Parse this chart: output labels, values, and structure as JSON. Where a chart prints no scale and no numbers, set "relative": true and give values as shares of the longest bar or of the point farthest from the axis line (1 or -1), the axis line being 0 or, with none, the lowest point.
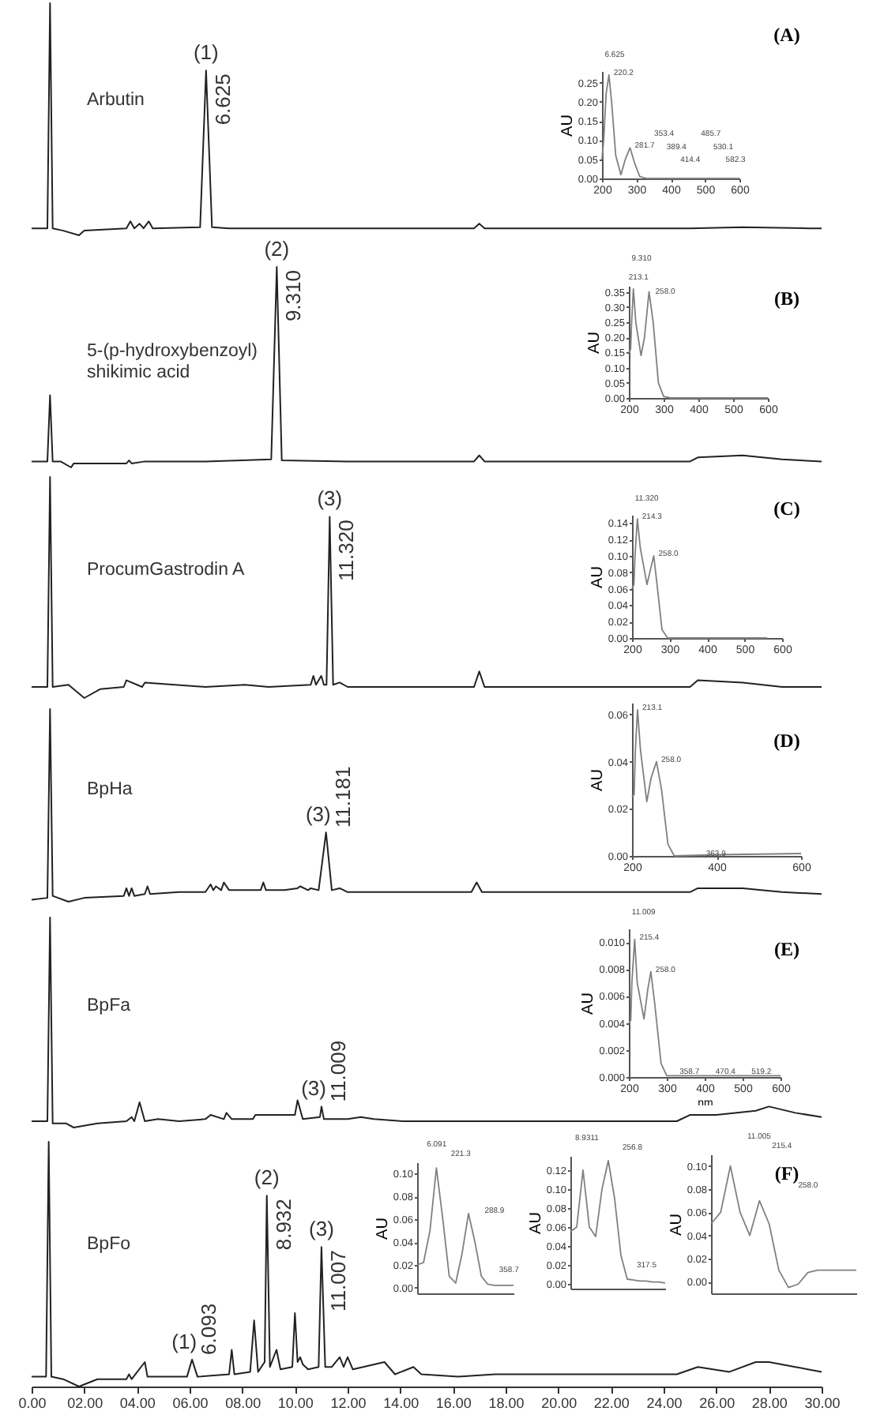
{
  "chart_data": [
    {
      "type": "line",
      "relative": true,
      "color": "#222222",
      "xlim": [
        0,
        30
      ],
      "tick_labels": false,
      "x": [
        0,
        0.6,
        0.7,
        0.8,
        1.2,
        1.8,
        2.0,
        3.6,
        3.75,
        3.9,
        4.1,
        4.25,
        4.45,
        4.6,
        6.4,
        6.625,
        6.85,
        7.5,
        12.5,
        16.8,
        17.0,
        17.2,
        25,
        27,
        29.5,
        30
      ],
      "values": [
        0.03,
        0.03,
        1,
        0.03,
        0.02,
        0,
        0.02,
        0.03,
        0.06,
        0.03,
        0.05,
        0.03,
        0.06,
        0.03,
        0.035,
        0.71,
        0.035,
        0.03,
        0.03,
        0.03,
        0.05,
        0.03,
        0.03,
        0.035,
        0.03,
        0.03
      ],
      "annotations": [
        "Arbutin",
        "(A)",
        {
          "text": "(1)",
          "x": 6.625,
          "y": 0.71
        },
        {
          "text": "6.625",
          "x": 6.625,
          "y": 0.71
        }
      ]
    },
    {
      "type": "line",
      "color": "#808080",
      "xlim": [
        200,
        600
      ],
      "xticks": [
        200,
        300,
        400,
        500,
        600
      ],
      "ylim": [
        0,
        0.28
      ],
      "ylabel": "AU",
      "yticks": [
        {
          "value": 0,
          "label": "0.00"
        },
        {
          "value": 0.05,
          "label": "0.05"
        },
        {
          "value": 0.1,
          "label": "0.10"
        },
        {
          "value": 0.15,
          "label": "0.15"
        },
        {
          "value": 0.2,
          "label": "0.20"
        },
        {
          "value": 0.25,
          "label": "0.25"
        }
      ],
      "x": [
        200,
        205,
        212,
        220.2,
        228,
        240,
        255,
        268,
        281.7,
        295,
        310,
        330,
        400,
        500,
        600
      ],
      "values": [
        0.05,
        0.1,
        0.22,
        0.27,
        0.2,
        0.06,
        0.01,
        0.05,
        0.08,
        0.04,
        0.005,
        0,
        0,
        0,
        0
      ],
      "annotations": [
        "6.625",
        {
          "text": "220.2",
          "x": 220.2,
          "y": 0.27
        },
        {
          "text": "281.7",
          "x": 281.7,
          "y": 0.08
        },
        "353.4",
        "389.4",
        "414.4",
        "485.7",
        "530.1",
        "582.3"
      ]
    },
    {
      "type": "line",
      "relative": true,
      "color": "#222222",
      "xlim": [
        0,
        30
      ],
      "tick_labels": false,
      "x": [
        0,
        0.6,
        0.7,
        0.8,
        1.1,
        1.5,
        1.6,
        3.6,
        3.7,
        3.8,
        4.3,
        6.6,
        8,
        9.1,
        9.31,
        9.5,
        12,
        16.8,
        17,
        17.2,
        25,
        25.3,
        27,
        28.5,
        30
      ],
      "values": [
        0.03,
        0.03,
        0.36,
        0.03,
        0.03,
        0,
        0.02,
        0.02,
        0.035,
        0.02,
        0.03,
        0.03,
        0.035,
        0.04,
        1,
        0.035,
        0.03,
        0.03,
        0.06,
        0.03,
        0.03,
        0.05,
        0.06,
        0.04,
        0.03
      ],
      "annotations": [
        "5-(p-hydroxybenzoyl)\nshikimic acid",
        "(B)",
        {
          "text": "(2)",
          "x": 9.31,
          "y": 1
        },
        {
          "text": "9.310",
          "x": 9.31,
          "y": 1
        }
      ]
    },
    {
      "type": "line",
      "color": "#808080",
      "xlim": [
        200,
        600
      ],
      "xticks": [
        200,
        300,
        400,
        500,
        600
      ],
      "ylim": [
        0,
        0.37
      ],
      "ylabel": "AU",
      "yticks": [
        {
          "value": 0,
          "label": "0.00"
        },
        {
          "value": 0.05,
          "label": "0.05"
        },
        {
          "value": 0.1,
          "label": "0.10"
        },
        {
          "value": 0.15,
          "label": "0.15"
        },
        {
          "value": 0.2,
          "label": "0.20"
        },
        {
          "value": 0.25,
          "label": "0.25"
        },
        {
          "value": 0.3,
          "label": "0.30"
        },
        {
          "value": 0.35,
          "label": "0.35"
        }
      ],
      "x": [
        200,
        205,
        208,
        213.1,
        220,
        235,
        245,
        258,
        270,
        285,
        300,
        320,
        400,
        600
      ],
      "values": [
        0.15,
        0.16,
        0.25,
        0.36,
        0.25,
        0.14,
        0.2,
        0.35,
        0.25,
        0.05,
        0.005,
        0,
        0,
        0
      ],
      "annotations": [
        "9.310",
        {
          "text": "213.1",
          "x": 213.1,
          "y": 0.36
        },
        {
          "text": "258.0",
          "x": 258,
          "y": 0.35
        }
      ]
    },
    {
      "type": "line",
      "relative": true,
      "color": "#222222",
      "xlim": [
        0,
        30
      ],
      "tick_labels": false,
      "x": [
        0,
        0.6,
        0.7,
        0.8,
        1.4,
        2.0,
        2.6,
        3.5,
        3.6,
        4.2,
        4.3,
        6.6,
        8.1,
        9.0,
        10.6,
        10.7,
        10.8,
        11.0,
        11.1,
        11.2,
        11.32,
        11.45,
        11.7,
        12,
        16.8,
        17,
        17.2,
        25,
        25.3,
        27,
        28.5,
        30
      ],
      "values": [
        0.05,
        0.05,
        1,
        0.05,
        0.06,
        0,
        0.04,
        0.05,
        0.08,
        0.05,
        0.07,
        0.05,
        0.06,
        0.05,
        0.06,
        0.1,
        0.06,
        0.1,
        0.06,
        0.06,
        0.82,
        0.06,
        0.07,
        0.05,
        0.05,
        0.12,
        0.05,
        0.05,
        0.08,
        0.07,
        0.05,
        0.05
      ],
      "annotations": [
        "ProcumGastrodin A",
        "(C)",
        {
          "text": "(3)",
          "x": 11.32,
          "y": 0.82
        },
        {
          "text": "11.320",
          "x": 11.32,
          "y": 0.82
        }
      ]
    },
    {
      "type": "line",
      "color": "#808080",
      "xlim": [
        200,
        600
      ],
      "xticks": [
        200,
        300,
        400,
        500,
        600
      ],
      "ylim": [
        0,
        0.15
      ],
      "ylabel": "AU",
      "yticks": [
        {
          "value": 0,
          "label": "0.00"
        },
        {
          "value": 0.02,
          "label": "0.02"
        },
        {
          "value": 0.04,
          "label": "0.04"
        },
        {
          "value": 0.06,
          "label": "0.06"
        },
        {
          "value": 0.08,
          "label": "0.08"
        },
        {
          "value": 0.1,
          "label": "0.10"
        },
        {
          "value": 0.12,
          "label": "0.12"
        },
        {
          "value": 0.14,
          "label": "0.14"
        }
      ],
      "x": [
        200,
        205,
        208,
        214.3,
        222,
        240,
        250,
        258,
        268,
        280,
        295,
        350,
        560
      ],
      "values": [
        0.06,
        0.065,
        0.1,
        0.145,
        0.11,
        0.065,
        0.085,
        0.1,
        0.06,
        0.01,
        0,
        0,
        0
      ],
      "annotations": [
        "11.320",
        {
          "text": "214.3",
          "x": 214.3,
          "y": 0.145
        },
        {
          "text": "258.0",
          "x": 258,
          "y": 0.1
        }
      ]
    },
    {
      "type": "line",
      "relative": true,
      "color": "#222222",
      "xlim": [
        0,
        30
      ],
      "tick_labels": false,
      "x": [
        0,
        0.6,
        0.7,
        0.8,
        1.4,
        2.0,
        3.5,
        3.6,
        3.7,
        3.8,
        3.9,
        4.3,
        4.4,
        4.5,
        5.6,
        6.6,
        6.8,
        6.9,
        7.0,
        7.2,
        7.3,
        7.5,
        8.7,
        8.8,
        8.9,
        9.6,
        10.1,
        10.2,
        10.5,
        10.6,
        10.9,
        11.181,
        11.4,
        11.7,
        12,
        16.7,
        16.9,
        17.1,
        25,
        25.3,
        27,
        28.5,
        30
      ],
      "values": [
        0.01,
        0.02,
        1,
        0.03,
        0,
        0.02,
        0.03,
        0.07,
        0.03,
        0.07,
        0.03,
        0.04,
        0.08,
        0.04,
        0.05,
        0.05,
        0.09,
        0.06,
        0.08,
        0.06,
        0.1,
        0.06,
        0.06,
        0.1,
        0.06,
        0.06,
        0.07,
        0.08,
        0.06,
        0.07,
        0.06,
        0.36,
        0.06,
        0.07,
        0.05,
        0.05,
        0.1,
        0.05,
        0.05,
        0.07,
        0.07,
        0.05,
        0.04
      ],
      "annotations": [
        "BpHa",
        "(D)",
        {
          "text": "(3)",
          "x": 11.181,
          "y": 0.36
        },
        {
          "text": "11.181",
          "x": 11.181,
          "y": 0.36
        }
      ]
    },
    {
      "type": "line",
      "color": "#808080",
      "xlim": [
        200,
        600
      ],
      "xticks": [
        200,
        400,
        600
      ],
      "ylim": [
        0,
        0.065
      ],
      "ylabel": "AU",
      "yticks": [
        {
          "value": 0,
          "label": "0.00"
        },
        {
          "value": 0.02,
          "label": "0.02"
        },
        {
          "value": 0.04,
          "label": "0.04"
        },
        {
          "value": 0.06,
          "label": "0.06"
        }
      ],
      "x": [
        200,
        205,
        208,
        213.1,
        220,
        235,
        245,
        258,
        270,
        285,
        300,
        400,
        600
      ],
      "values": [
        0.025,
        0.026,
        0.045,
        0.062,
        0.045,
        0.023,
        0.033,
        0.04,
        0.028,
        0.005,
        0,
        0.0005,
        0.001
      ],
      "annotations": [
        {
          "text": "213.1",
          "x": 213.1,
          "y": 0.062
        },
        {
          "text": "258.0",
          "x": 258,
          "y": 0.04
        },
        {
          "text": "363.9",
          "x": 363.9,
          "y": 0
        }
      ]
    },
    {
      "type": "line",
      "relative": true,
      "color": "#222222",
      "xlim": [
        0,
        30
      ],
      "tick_labels": false,
      "x": [
        0,
        0.6,
        0.7,
        0.8,
        1.3,
        1.6,
        2.5,
        3.6,
        3.8,
        3.9,
        4.1,
        4.3,
        4.8,
        5.6,
        6.6,
        6.8,
        7.3,
        7.4,
        7.6,
        8.4,
        8.5,
        10.0,
        10.1,
        10.3,
        10.95,
        11.009,
        11.1,
        12,
        12.5,
        13,
        14.1,
        16.5,
        24.5,
        25,
        26,
        27.5,
        28,
        29,
        30
      ],
      "values": [
        0.03,
        0.03,
        1,
        0.02,
        0.02,
        0,
        0.02,
        0.03,
        0.05,
        0.03,
        0.12,
        0.03,
        0.04,
        0.03,
        0.04,
        0.06,
        0.04,
        0.07,
        0.04,
        0.04,
        0.06,
        0.06,
        0.13,
        0.04,
        0.05,
        0.1,
        0.04,
        0.04,
        0.05,
        0.04,
        0.03,
        0.03,
        0.03,
        0.06,
        0.06,
        0.08,
        0.1,
        0.07,
        0.05
      ],
      "annotations": [
        "BpFa",
        "(E)",
        {
          "text": "(3)",
          "x": 11.009,
          "y": 0.1
        },
        {
          "text": "11.009",
          "x": 11.009,
          "y": 0.1
        }
      ]
    },
    {
      "type": "line",
      "color": "#808080",
      "xlim": [
        200,
        600
      ],
      "xticks": [
        200,
        300,
        400,
        500,
        600
      ],
      "ylim": [
        0,
        0.011
      ],
      "ylabel": "AU",
      "xlabel": "nm",
      "yticks": [
        {
          "value": 0,
          "label": "0.000"
        },
        {
          "value": 0.002,
          "label": "0.002"
        },
        {
          "value": 0.004,
          "label": "0.004"
        },
        {
          "value": 0.006,
          "label": "0.006"
        },
        {
          "value": 0.008,
          "label": "0.008"
        },
        {
          "value": 0.01,
          "label": "0.010"
        }
      ],
      "x": [
        200,
        205,
        208,
        215.4,
        222,
        240,
        250,
        258,
        268,
        285,
        300,
        400,
        600
      ],
      "values": [
        0.004,
        0.0042,
        0.007,
        0.0102,
        0.007,
        0.0043,
        0.0065,
        0.0078,
        0.0055,
        0.001,
        0.0001,
        0.0001,
        0.0001
      ],
      "annotations": [
        "11.009",
        {
          "text": "215.4",
          "x": 215.4,
          "y": 0.0102
        },
        {
          "text": "258.0",
          "x": 258,
          "y": 0.0078
        },
        {
          "text": "358.7",
          "x": 358.7,
          "y": 0
        },
        {
          "text": "470.4",
          "x": 470.4,
          "y": 0
        },
        {
          "text": "519.2",
          "x": 519.2,
          "y": 0
        }
      ]
    },
    {
      "type": "line",
      "relative": true,
      "color": "#222222",
      "xlim": [
        0,
        30
      ],
      "tick_labels": "x",
      "xticks": [
        {
          "value": 0,
          "label": "0.00"
        },
        {
          "value": 2,
          "label": "02.00"
        },
        {
          "value": 4,
          "label": "04.00"
        },
        {
          "value": 6,
          "label": "06.00"
        },
        {
          "value": 8,
          "label": "08.00"
        },
        {
          "value": 10,
          "label": "10.00"
        },
        {
          "value": 12,
          "label": "12.00"
        },
        {
          "value": 14,
          "label": "14.00"
        },
        {
          "value": 16,
          "label": "16.00"
        },
        {
          "value": 18,
          "label": "18.00"
        },
        {
          "value": 20,
          "label": "20.00"
        },
        {
          "value": 22,
          "label": "22.00"
        },
        {
          "value": 24,
          "label": "24.00"
        },
        {
          "value": 26,
          "label": "26.00"
        },
        {
          "value": 28,
          "label": "28.00"
        },
        {
          "value": 30,
          "label": "30.00"
        }
      ],
      "x": [
        0,
        0.55,
        0.65,
        0.75,
        1.2,
        1.8,
        2.5,
        3.6,
        3.7,
        3.8,
        4.3,
        4.4,
        5.9,
        6.093,
        6.3,
        7.5,
        7.6,
        7.7,
        8.3,
        8.45,
        8.6,
        8.85,
        8.932,
        9.05,
        9.3,
        9.45,
        9.9,
        10.0,
        10.1,
        10.2,
        10.3,
        10.5,
        10.9,
        11.007,
        11.15,
        11.4,
        11.7,
        11.85,
        12.0,
        12.2,
        13.4,
        13.8,
        14.5,
        14.8,
        16.2,
        17.6,
        18.5,
        24.5,
        25.3,
        26.5,
        27.5,
        28,
        29,
        30
      ],
      "values": [
        0.04,
        0.04,
        1,
        0.04,
        0.03,
        0,
        0.03,
        0.03,
        0.05,
        0.03,
        0.1,
        0.04,
        0.04,
        0.11,
        0.04,
        0.05,
        0.15,
        0.05,
        0.06,
        0.27,
        0.06,
        0.1,
        0.78,
        0.08,
        0.15,
        0.07,
        0.08,
        0.3,
        0.1,
        0.12,
        0.09,
        0.07,
        0.08,
        0.57,
        0.08,
        0.08,
        0.12,
        0.08,
        0.12,
        0.07,
        0.1,
        0.05,
        0.08,
        0.05,
        0.04,
        0.05,
        0.05,
        0.05,
        0.08,
        0.06,
        0.1,
        0.1,
        0.08,
        0.06
      ],
      "annotations": [
        "BpFo",
        "(F)",
        {
          "text": "(1)",
          "x": 6.093,
          "y": 0.11
        },
        {
          "text": "6.093",
          "x": 6.093,
          "y": 0.11
        },
        {
          "text": "(2)",
          "x": 8.932,
          "y": 0.78
        },
        {
          "text": "8.932",
          "x": 8.932,
          "y": 0.78
        },
        {
          "text": "(3)",
          "x": 11.007,
          "y": 0.57
        },
        {
          "text": "11.007",
          "x": 11.007,
          "y": 0.57
        }
      ]
    },
    {
      "type": "line",
      "color": "#808080",
      "ylim": [
        -0.005,
        0.11
      ],
      "ylabel": "AU",
      "tick_labels": "y",
      "yticks": [
        {
          "value": 0,
          "label": "0.00"
        },
        {
          "value": 0.02,
          "label": "0.02"
        },
        {
          "value": 0.04,
          "label": "0.04"
        },
        {
          "value": 0.06,
          "label": "0.06"
        },
        {
          "value": 0.08,
          "label": "0.08"
        },
        {
          "value": 0.1,
          "label": "0.10"
        }
      ],
      "categories": [
        null,
        null,
        null,
        null,
        null,
        null,
        null,
        null,
        null,
        null,
        null,
        null,
        null,
        null,
        null,
        null
      ],
      "values": [
        0.02,
        0.022,
        0.05,
        0.105,
        0.06,
        0.01,
        0.004,
        0.03,
        0.065,
        0.04,
        0.01,
        0.003,
        0.002,
        0.002,
        0.002,
        0.002
      ],
      "annotations": [
        "6.091",
        "221.3",
        "288.9",
        "358.7"
      ]
    },
    {
      "type": "line",
      "color": "#808080",
      "ylim": [
        -0.005,
        0.135
      ],
      "ylabel": "AU",
      "tick_labels": "y",
      "yticks": [
        {
          "value": 0,
          "label": "0.00"
        },
        {
          "value": 0.02,
          "label": "0.02"
        },
        {
          "value": 0.04,
          "label": "0.04"
        },
        {
          "value": 0.06,
          "label": "0.06"
        },
        {
          "value": 0.08,
          "label": "0.08"
        },
        {
          "value": 0.1,
          "label": "0.10"
        },
        {
          "value": 0.12,
          "label": "0.12"
        }
      ],
      "categories": [
        null,
        null,
        null,
        null,
        null,
        null,
        null,
        null,
        null,
        null,
        null,
        null,
        null,
        null,
        null,
        null
      ],
      "values": [
        0.055,
        0.06,
        0.12,
        0.06,
        0.05,
        0.1,
        0.13,
        0.09,
        0.03,
        0.005,
        0.004,
        0.003,
        0.003,
        0.002,
        0.002,
        0.001
      ],
      "annotations": [
        "8.9311",
        "256.8",
        "317.5"
      ]
    },
    {
      "type": "line",
      "color": "#808080",
      "ylim": [
        -0.01,
        0.11
      ],
      "ylabel": "AU",
      "tick_labels": "y",
      "yticks": [
        {
          "value": 0,
          "label": "0.00"
        },
        {
          "value": 0.02,
          "label": "0.02"
        },
        {
          "value": 0.04,
          "label": "0.04"
        },
        {
          "value": 0.06,
          "label": "0.06"
        },
        {
          "value": 0.08,
          "label": "0.08"
        },
        {
          "value": 0.1,
          "label": "0.10"
        }
      ],
      "categories": [
        null,
        null,
        null,
        null,
        null,
        null,
        null,
        null,
        null,
        null,
        null,
        null,
        null,
        null,
        null,
        null
      ],
      "values": [
        0.05,
        0.06,
        0.1,
        0.06,
        0.04,
        0.07,
        0.05,
        0.01,
        -0.005,
        -0.002,
        0.008,
        0.01,
        0.01,
        0.01,
        0.01,
        0.01
      ],
      "annotations": [
        "11.005",
        "215.4",
        "258.0"
      ]
    }
  ]
}
